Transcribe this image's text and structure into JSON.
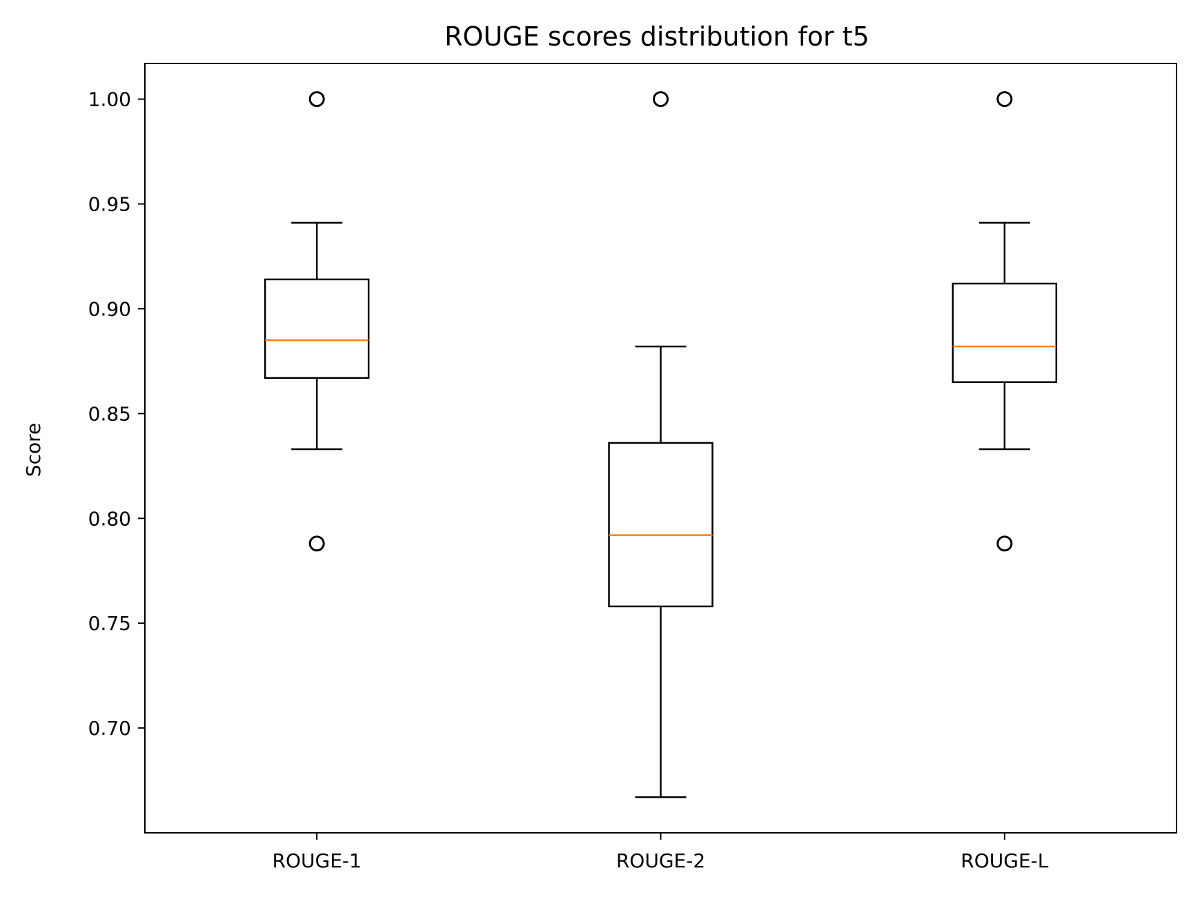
{
  "chart_data": {
    "type": "box",
    "title": "ROUGE scores distribution for t5",
    "xlabel": "",
    "ylabel": "Score",
    "ylim": [
      0.65,
      1.017
    ],
    "yticks": [
      0.7,
      0.75,
      0.8,
      0.85,
      0.9,
      0.95,
      1.0
    ],
    "ytick_labels": [
      "0.70",
      "0.75",
      "0.80",
      "0.85",
      "0.90",
      "0.95",
      "1.00"
    ],
    "grid": false,
    "legend": "none",
    "colors": {
      "box": "#000000",
      "median": "#ff7f0e",
      "outlier": "#000000"
    },
    "categories": [
      "ROUGE-1",
      "ROUGE-2",
      "ROUGE-L"
    ],
    "boxes": [
      {
        "name": "ROUGE-1",
        "whisker_low": 0.833,
        "q1": 0.867,
        "median": 0.885,
        "q3": 0.914,
        "whisker_high": 0.941,
        "outliers": [
          1.0,
          0.788
        ]
      },
      {
        "name": "ROUGE-2",
        "whisker_low": 0.667,
        "q1": 0.758,
        "median": 0.792,
        "q3": 0.836,
        "whisker_high": 0.882,
        "outliers": [
          1.0
        ]
      },
      {
        "name": "ROUGE-L",
        "whisker_low": 0.833,
        "q1": 0.865,
        "median": 0.882,
        "q3": 0.912,
        "whisker_high": 0.941,
        "outliers": [
          1.0,
          0.788
        ]
      }
    ]
  }
}
